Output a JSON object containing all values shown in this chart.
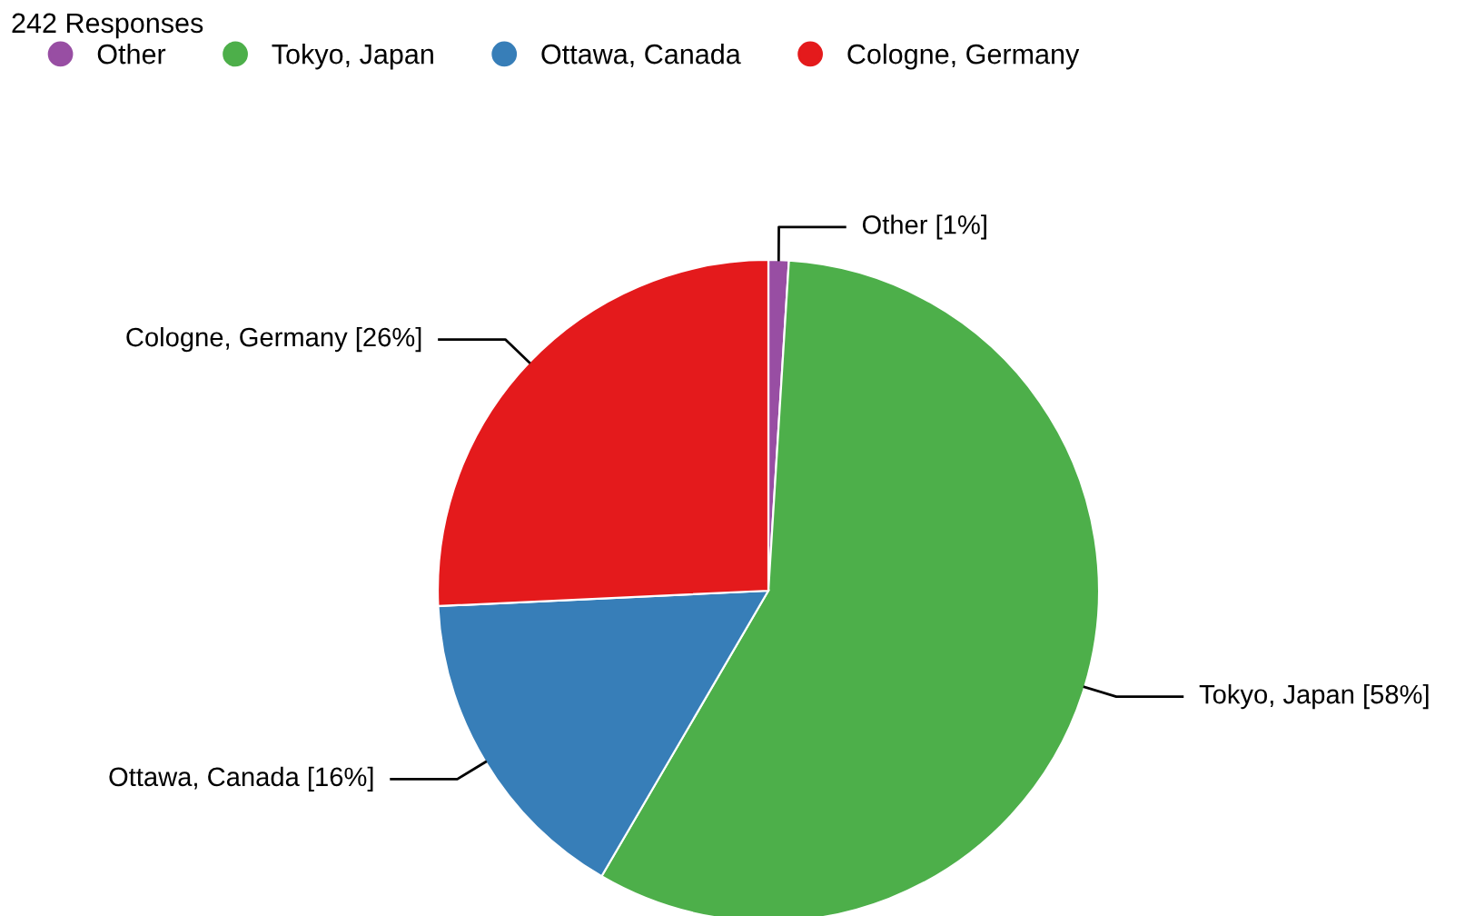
{
  "chart_data": {
    "type": "pie",
    "title": "242 Responses",
    "categories": [
      "Other",
      "Tokyo, Japan",
      "Ottawa, Canada",
      "Cologne, Germany"
    ],
    "values": [
      1,
      58,
      16,
      26
    ],
    "value_labels": [
      "[1%]",
      "[58%]",
      "[16%]",
      "[26%]"
    ],
    "colors": [
      "#984ea3",
      "#4daf4a",
      "#377eb8",
      "#e41a1c"
    ],
    "legend": "top left"
  }
}
